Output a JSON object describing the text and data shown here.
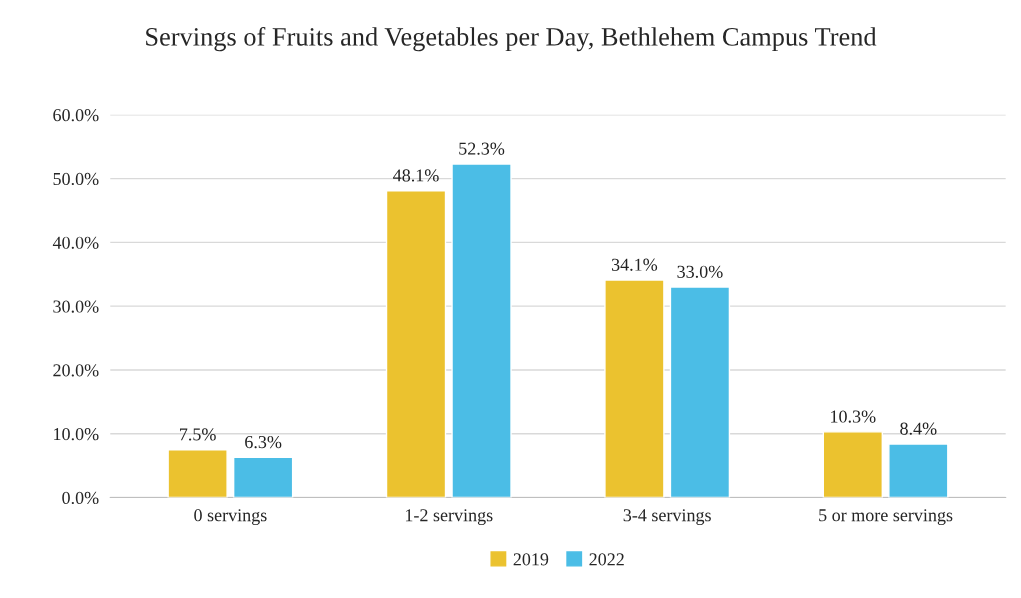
{
  "chart_data": {
    "type": "bar",
    "title": "Servings of Fruits and Vegetables per Day, Bethlehem Campus Trend",
    "categories": [
      "0 servings",
      "1-2 servings",
      "3-4 servings",
      "5 or more servings"
    ],
    "series": [
      {
        "name": "2019",
        "color": "#ebc22f",
        "values": [
          7.5,
          48.1,
          34.1,
          10.3
        ],
        "value_labels": [
          "7.5%",
          "48.1%",
          "34.1%",
          "10.3%"
        ]
      },
      {
        "name": "2022",
        "color": "#4bbde6",
        "values": [
          6.3,
          52.3,
          33.0,
          8.4
        ],
        "value_labels": [
          "6.3%",
          "52.3%",
          "33.0%",
          "8.4%"
        ]
      }
    ],
    "ylim": [
      0,
      60
    ],
    "yticks": [
      {
        "value": 0,
        "label": "0.0%"
      },
      {
        "value": 10,
        "label": "10.0%"
      },
      {
        "value": 20,
        "label": "20.0%"
      },
      {
        "value": 30,
        "label": "30.0%"
      },
      {
        "value": 40,
        "label": "40.0%"
      },
      {
        "value": 50,
        "label": "50.0%"
      },
      {
        "value": 60,
        "label": "60.0%"
      }
    ],
    "grid": "y",
    "legend": "bottom"
  }
}
